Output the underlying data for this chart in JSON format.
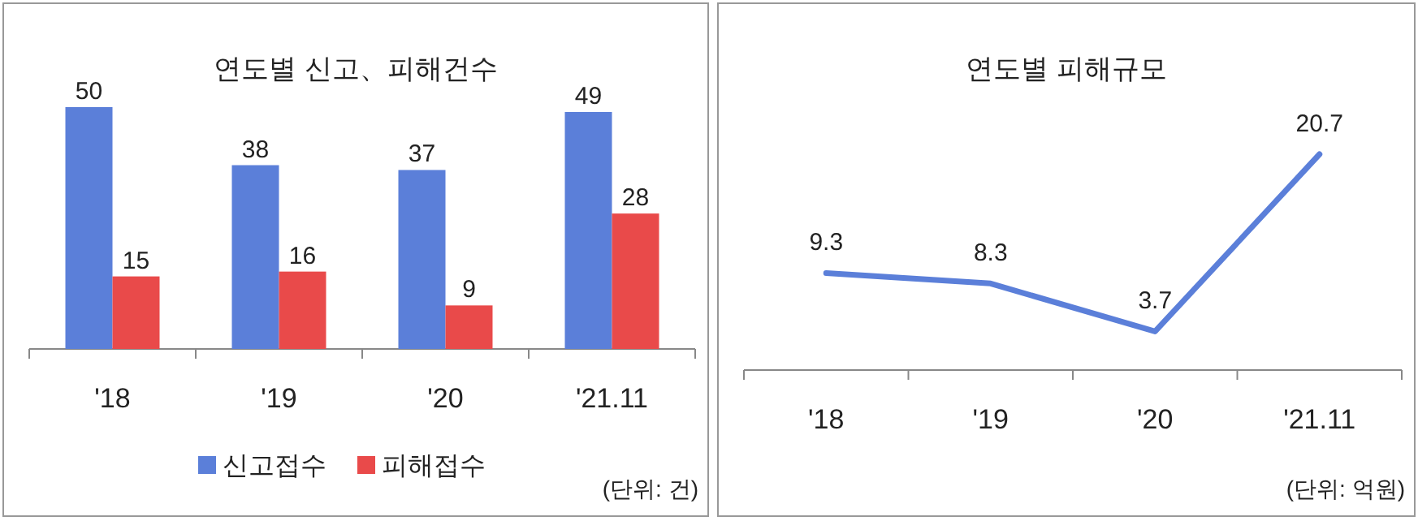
{
  "chart_data": [
    {
      "type": "bar",
      "title": "연도별 신고、피해건수",
      "categories": [
        "'18",
        "'19",
        "'20",
        "'21.11"
      ],
      "series": [
        {
          "name": "신고접수",
          "color": "#5b7fd9",
          "values": [
            50,
            38,
            37,
            49
          ]
        },
        {
          "name": "피해접수",
          "color": "#e94a4a",
          "values": [
            15,
            16,
            9,
            28
          ]
        }
      ],
      "data_labels": true,
      "legend": "bottom",
      "annotations": [
        "(단위: 건)"
      ]
    },
    {
      "type": "line",
      "title": "연도별 피해규모",
      "categories": [
        "'18",
        "'19",
        "'20",
        "'21.11"
      ],
      "series": [
        {
          "color": "#5b7fd9",
          "values": [
            9.3,
            8.3,
            3.7,
            20.7
          ]
        }
      ],
      "data_labels": true,
      "annotations": [
        "(단위: 억원)"
      ]
    }
  ]
}
